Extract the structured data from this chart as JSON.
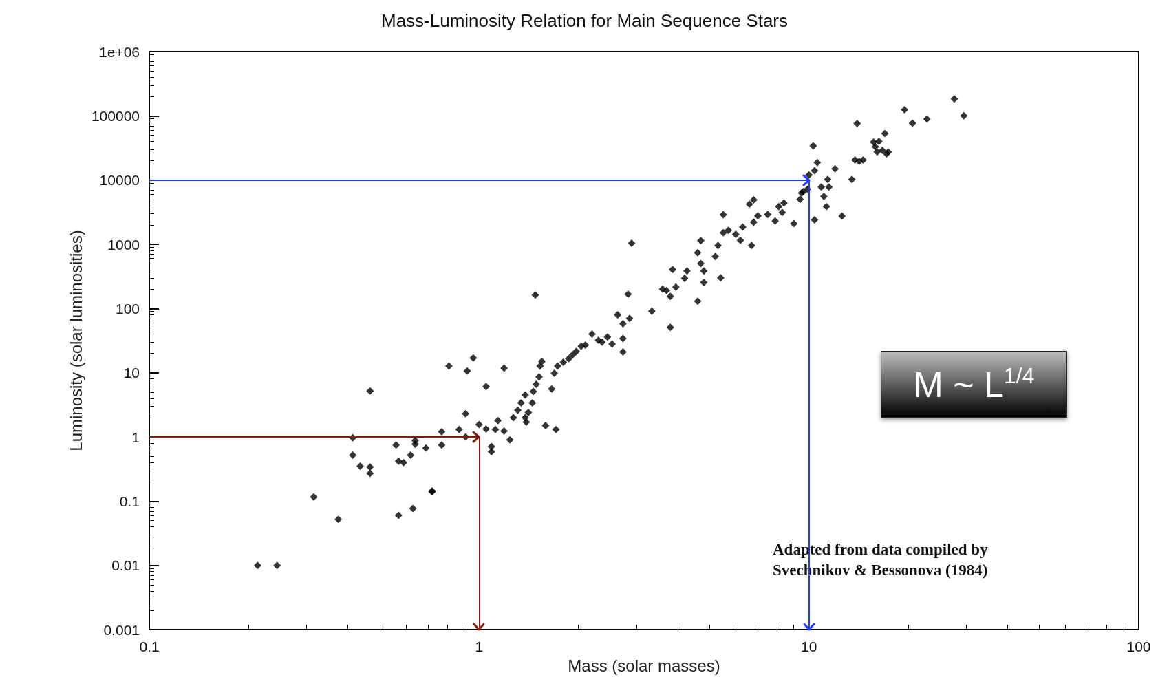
{
  "chart_data": {
    "type": "scatter",
    "title": "Mass-Luminosity Relation for Main Sequence Stars",
    "xlabel": "Mass (solar masses)",
    "ylabel": "Luminosity (solar luminosities)",
    "log": "xy",
    "grid": false,
    "marker": "diamond",
    "xlim": [
      0.1,
      100
    ],
    "xticks": [
      0.1,
      1,
      10,
      100
    ],
    "ylim": [
      0.001,
      1000000
    ],
    "yticks": [
      0.001,
      0.01,
      0.1,
      1,
      10,
      100,
      1000,
      10000,
      100000,
      {
        "value": 1000000,
        "label": "1e+06"
      }
    ],
    "annotations": [
      "M ~ L$^{1/4}$",
      "Adapted from data compiled by\nSvechnikov & Bessonova (1984)"
    ],
    "ref_lines": [
      {
        "axis": "y",
        "value": 1,
        "color": "#8b1a0a"
      },
      {
        "axis": "x",
        "value": 1,
        "color": "#8b1a0a"
      },
      {
        "axis": "y",
        "value": 10000,
        "color": "#1a3cff"
      },
      {
        "axis": "x",
        "value": 10,
        "color": "#1a3cff"
      }
    ],
    "series": [
      {
        "color": "#000000",
        "x": [
          0.213,
          0.244,
          0.315,
          0.374,
          0.414,
          0.414,
          0.436,
          0.467,
          0.467,
          0.467,
          0.56,
          0.57,
          0.57,
          0.59,
          0.63,
          0.64,
          0.64,
          0.62,
          0.69,
          0.72,
          0.72,
          0.77,
          0.77,
          0.81,
          0.87,
          0.91,
          0.91,
          0.92,
          0.96,
          1.0,
          1.05,
          1.05,
          1.09,
          1.09,
          1.12,
          1.19,
          1.14,
          1.19,
          1.24,
          1.27,
          1.31,
          1.34,
          1.38,
          1.38,
          1.41,
          1.45,
          1.46,
          1.49,
          1.52,
          1.53,
          1.55,
          1.48,
          1.39,
          1.59,
          1.71,
          1.66,
          1.69,
          1.73,
          1.8,
          1.87,
          1.92,
          1.97,
          2.04,
          2.1,
          2.2,
          2.3,
          2.36,
          2.45,
          2.53,
          2.63,
          2.73,
          2.73,
          2.73,
          2.83,
          2.9,
          2.86,
          3.34,
          3.6,
          3.7,
          3.8,
          3.8,
          3.86,
          3.95,
          4.2,
          4.27,
          4.6,
          4.7,
          4.8,
          4.8,
          4.6,
          4.7,
          5.2,
          5.3,
          5.4,
          5.5,
          5.5,
          5.7,
          6.0,
          6.2,
          6.3,
          6.7,
          6.8,
          6.6,
          6.8,
          7.0,
          7.5,
          7.9,
          8.1,
          8.4,
          8.3,
          9.0,
          9.5,
          9.9,
          10.4,
          9.4,
          9.6,
          10.4,
          10.0,
          10.3,
          10.6,
          10.9,
          11.3,
          11.1,
          11.4,
          11.5,
          12.0,
          12.6,
          13.5,
          13.8,
          14.2,
          14.6,
          14.0,
          15.7,
          15.9,
          16.1,
          16.3,
          16.7,
          17.2,
          17.4,
          17.0,
          19.5,
          20.6,
          22.8,
          27.6,
          29.5
        ],
        "values": [
          0.01,
          0.01,
          0.116,
          0.052,
          0.52,
          0.97,
          0.35,
          5.2,
          0.34,
          0.27,
          0.75,
          0.06,
          0.42,
          0.4,
          0.077,
          0.88,
          0.77,
          0.52,
          0.67,
          0.144,
          0.14,
          1.2,
          0.75,
          12.7,
          1.3,
          1.0,
          2.3,
          10.6,
          17,
          1.56,
          1.33,
          6.1,
          0.59,
          0.71,
          1.3,
          11.8,
          1.8,
          1.23,
          0.9,
          2.0,
          2.6,
          3.4,
          4.5,
          2.0,
          2.4,
          3.4,
          5.1,
          6.6,
          8.6,
          12.7,
          15,
          162,
          1.7,
          1.5,
          1.3,
          5.6,
          9.8,
          12.7,
          14.5,
          16.5,
          18.9,
          21.5,
          25.8,
          27,
          40,
          32,
          30,
          36,
          28,
          80,
          58,
          34,
          21,
          167,
          1040,
          70,
          91,
          200,
          190,
          51,
          154,
          405,
          215,
          295,
          385,
          740,
          500,
          385,
          255,
          130,
          1140,
          645,
          960,
          300,
          2880,
          1510,
          1650,
          1430,
          1150,
          1850,
          960,
          2200,
          4200,
          4900,
          2760,
          2900,
          2300,
          3850,
          4400,
          3130,
          2100,
          6300,
          7200,
          2400,
          5000,
          6600,
          14000,
          12000,
          34000,
          18700,
          7800,
          3870,
          5550,
          10200,
          7800,
          15000,
          2750,
          10200,
          20500,
          19500,
          20500,
          76000,
          38900,
          33000,
          27500,
          40000,
          29000,
          25600,
          27500,
          53000,
          124000,
          77000,
          89000,
          183000,
          100000
        ]
      }
    ]
  }
}
